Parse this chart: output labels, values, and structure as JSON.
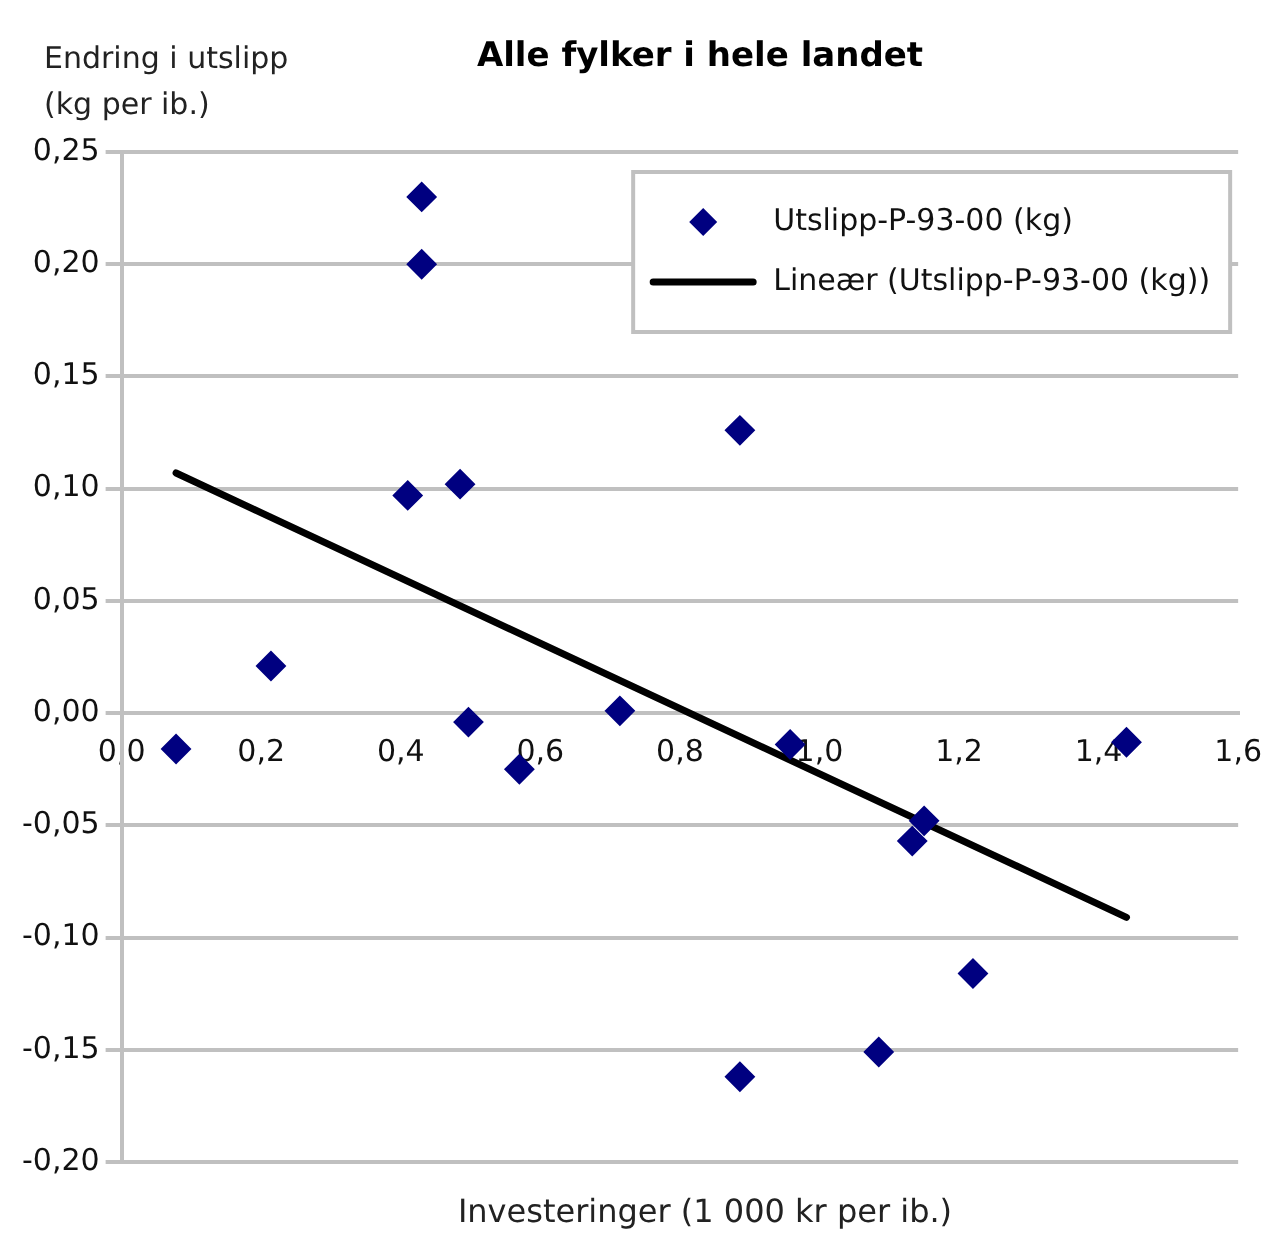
{
  "chart_data": {
    "type": "scatter",
    "title": "Alle fylker i hele landet",
    "xlabel": "Investeringer (1 000 kr per ib.)",
    "ylabel": "Endring i utslipp (kg per ib.)",
    "xlim": [
      0,
      1.6
    ],
    "xticks": [
      {
        "value": 0,
        "label": "0,0"
      },
      {
        "value": 0.2,
        "label": "0,2"
      },
      {
        "value": 0.4,
        "label": "0,4"
      },
      {
        "value": 0.6,
        "label": "0,6"
      },
      {
        "value": 0.8,
        "label": "0,8"
      },
      {
        "value": 1,
        "label": "1,0"
      },
      {
        "value": 1.2,
        "label": "1,2"
      },
      {
        "value": 1.4,
        "label": "1,4"
      },
      {
        "value": 1.6,
        "label": "1,6"
      }
    ],
    "ylim": [
      -0.2,
      0.25
    ],
    "yticks": [
      {
        "value": -0.2,
        "label": "-0,20"
      },
      {
        "value": -0.15,
        "label": "-0,15"
      },
      {
        "value": -0.1,
        "label": "-0,10"
      },
      {
        "value": -0.05,
        "label": "-0,05"
      },
      {
        "value": 0,
        "label": "0,00"
      },
      {
        "value": 0.05,
        "label": "0,05"
      },
      {
        "value": 0.1,
        "label": "0,10"
      },
      {
        "value": 0.15,
        "label": "0,15"
      },
      {
        "value": 0.2,
        "label": "0,20"
      },
      {
        "value": 0.25,
        "label": "0,25"
      }
    ],
    "grid": "y",
    "legend": "top right",
    "series": [
      {
        "name": "Utslipp-P-93-00 (kg)",
        "color": "#000080",
        "marker": "diamond",
        "x": [
          0.078,
          0.214,
          0.41,
          0.43,
          0.43,
          0.485,
          0.497,
          0.57,
          0.714,
          0.886,
          0.958,
          0.886,
          1.085,
          1.15,
          1.133,
          1.22,
          1.44
        ],
        "values": [
          -0.016,
          0.021,
          0.097,
          0.23,
          0.2,
          0.102,
          -0.004,
          -0.025,
          0.001,
          0.126,
          -0.014,
          -0.162,
          -0.151,
          -0.048,
          -0.057,
          -0.116,
          -0.013
        ]
      },
      {
        "name": "Lineær (Utslipp-P-93-00 (kg))",
        "type": "line",
        "color": "#000000",
        "marker": "none",
        "x": [
          0.078,
          1.44
        ],
        "values": [
          0.107,
          -0.091
        ]
      }
    ]
  }
}
